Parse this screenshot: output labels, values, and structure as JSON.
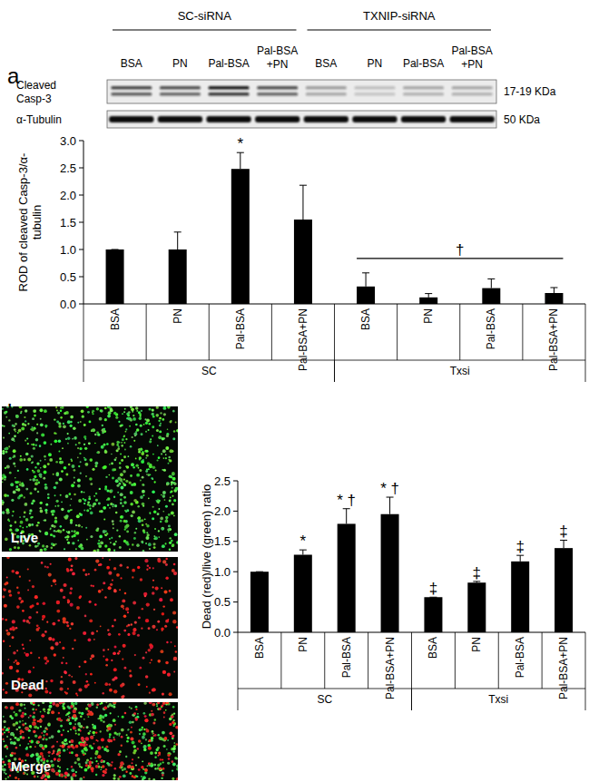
{
  "panel_labels": [
    "a",
    "b"
  ],
  "blot": {
    "groups": [
      "SC-siRNA",
      "TXNIP-siRNA"
    ],
    "lanes": [
      [
        "BSA"
      ],
      [
        "PN"
      ],
      [
        "Pal-BSA"
      ],
      [
        "Pal-BSA",
        "+PN"
      ]
    ],
    "rows": [
      {
        "label": [
          "Cleaved",
          "Casp-3"
        ],
        "size": "17-19 KDa"
      },
      {
        "label": [
          "α-Tubulin"
        ],
        "size": "50 KDa"
      }
    ]
  },
  "images": [
    "Live",
    "Dead",
    "Merge"
  ],
  "chart_data": [
    {
      "type": "bar",
      "y_label": [
        "ROD of cleaved Casp-3/α-",
        "tubulin"
      ],
      "categories": [
        "BSA",
        "PN",
        "Pal-BSA",
        "Pal-BSA+PN",
        "BSA",
        "PN",
        "Pal-BSA",
        "Pal-BSA+PN"
      ],
      "values": [
        1.0,
        1.0,
        2.48,
        1.55,
        0.32,
        0.12,
        0.29,
        0.2
      ],
      "errors": [
        0,
        0.32,
        0.3,
        0.63,
        0.25,
        0.07,
        0.17,
        0.1
      ],
      "annotations": [
        null,
        null,
        "*",
        null,
        null,
        null,
        null,
        null
      ],
      "groups": [
        {
          "label": "SC",
          "count": 4,
          "annotation": null
        },
        {
          "label": "Txsi",
          "count": 4,
          "annotation": "†"
        }
      ],
      "color": "#000000",
      "ylim": [
        0,
        3
      ],
      "yticks": [
        {
          "value": 0,
          "label": "0.0"
        },
        0.5,
        {
          "value": 1,
          "label": "1.0"
        },
        1.5,
        {
          "value": 2,
          "label": "2.0"
        },
        2.5,
        {
          "value": 3,
          "label": "3.0"
        }
      ]
    },
    {
      "type": "bar",
      "y_label": [
        "Dead (red)/live (green) ratio"
      ],
      "categories": [
        "BSA",
        "PN",
        "Pal-BSA",
        "Pal-BSA+PN",
        "BSA",
        "PN",
        "Pal-BSA",
        "Pal-BSA+PN"
      ],
      "values": [
        1.0,
        1.28,
        1.79,
        1.95,
        0.58,
        0.82,
        1.17,
        1.39
      ],
      "errors": [
        0,
        0.08,
        0.25,
        0.28,
        0,
        0.02,
        0.1,
        0.13
      ],
      "annotations": [
        null,
        "*",
        "* †",
        "* †",
        "‡",
        "‡",
        "‡",
        "‡"
      ],
      "groups": [
        {
          "label": "SC",
          "count": 4,
          "annotation": null
        },
        {
          "label": "Txsi",
          "count": 4,
          "annotation": null
        }
      ],
      "color": "#000000",
      "ylim": [
        0,
        2.5
      ],
      "yticks": [
        {
          "value": 0,
          "label": "0.0"
        },
        0.5,
        {
          "value": 1,
          "label": "1.0"
        },
        1.5,
        {
          "value": 2,
          "label": "2.0"
        },
        2.5
      ]
    }
  ]
}
